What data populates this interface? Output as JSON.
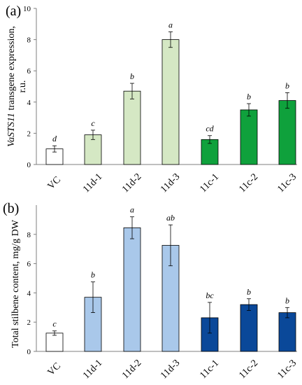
{
  "chart_data": [
    {
      "panel_label": "(a)",
      "type": "bar",
      "ylabel_italic": "VaSTS11",
      "ylabel_rest": " transgene expression,",
      "ylabel_line2": "r.u.",
      "ylim": [
        0,
        10
      ],
      "yticks": [
        0,
        2,
        4,
        6,
        8,
        10
      ],
      "categories": [
        "VC",
        "11d-1",
        "11d-2",
        "11d-3",
        "11c-1",
        "11c-2",
        "11c-3"
      ],
      "values": [
        1.0,
        1.9,
        4.7,
        8.0,
        1.6,
        3.5,
        4.1
      ],
      "errors": [
        0.2,
        0.3,
        0.5,
        0.5,
        0.25,
        0.4,
        0.5
      ],
      "significance": [
        "d",
        "c",
        "b",
        "a",
        "cd",
        "b",
        "b"
      ],
      "colors": [
        "#ffffff",
        "#d5e8c4",
        "#d5e8c4",
        "#d5e8c4",
        "#0fa13c",
        "#0fa13c",
        "#0fa13c"
      ],
      "grid": false
    },
    {
      "panel_label": "(b)",
      "type": "bar",
      "ylabel": "Total stilbene content, mg/g DW",
      "ylim": [
        0,
        10
      ],
      "yticks": [
        0,
        2,
        4,
        6,
        8
      ],
      "categories": [
        "VC",
        "11d-1",
        "11d-2",
        "11d-3",
        "11c-1",
        "11c-2",
        "11c-3"
      ],
      "values": [
        1.25,
        3.7,
        8.45,
        7.25,
        2.3,
        3.2,
        2.65
      ],
      "errors": [
        0.15,
        1.05,
        0.75,
        1.4,
        1.05,
        0.4,
        0.35
      ],
      "significance": [
        "c",
        "b",
        "a",
        "ab",
        "bc",
        "b",
        "b"
      ],
      "colors": [
        "#ffffff",
        "#a9c8ea",
        "#a9c8ea",
        "#a9c8ea",
        "#0a4899",
        "#0a4899",
        "#0a4899"
      ],
      "grid": false
    }
  ]
}
